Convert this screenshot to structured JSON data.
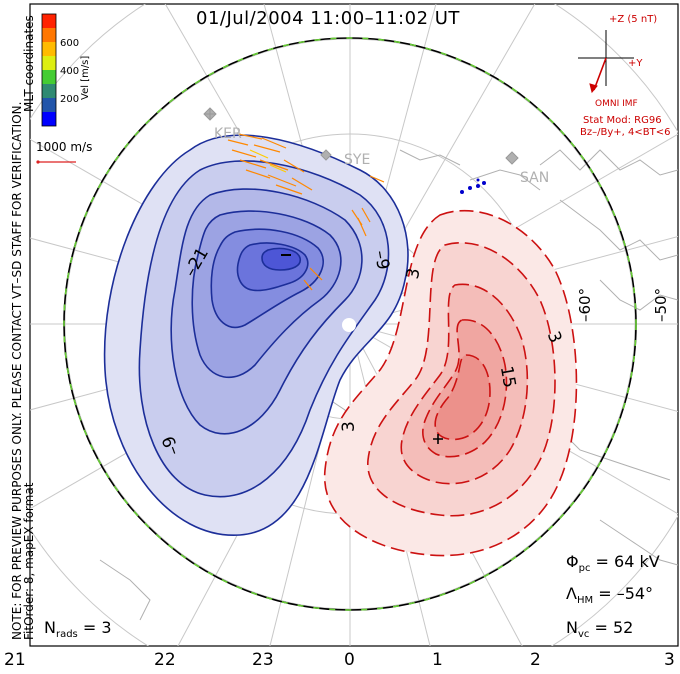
{
  "title": "01/Jul/2004 11:00–11:02 UT",
  "side_notes": {
    "line1": "NOTE: FOR PREVIEW PURPOSES ONLY. PLEASE CONTACT VT–SD STAFF FOR VERIFICATION.",
    "line2": "FitOrder: 8, mapEX format",
    "mlt": "MLT coordinates"
  },
  "colorbar": {
    "label": "Vel [m/s]",
    "ticks": [
      "600",
      "400",
      "200"
    ],
    "colors": [
      "#ff0000",
      "#ff8000",
      "#ffcc00",
      "#ccee00",
      "#33cc33",
      "#2f8f6f",
      "#1f55aa",
      "#0000ff"
    ]
  },
  "velocity_scale": "1000 m/s",
  "imf": {
    "bz_label": "+Z (5 nT)",
    "by_label": "+Y",
    "caption": "OMNI IMF",
    "model_line1": "Stat Mod: RG96",
    "model_line2": "Bz–/By+, 4<BT<6"
  },
  "radars": [
    "KER",
    "SYE",
    "SAN"
  ],
  "latitude_labels": [
    "–60°",
    "–50°"
  ],
  "mlt_labels": [
    "21",
    "22",
    "23",
    "0",
    "1",
    "2",
    "3"
  ],
  "contour_labels": {
    "neg": [
      "–21",
      "–9",
      "–9"
    ],
    "pos": [
      "3",
      "3",
      "3",
      "15"
    ]
  },
  "stats": {
    "phi_pc": "Φpc = 64 kV",
    "phi_sym": "Φ",
    "phi_sub": "pc",
    "phi_val": "= 64 kV",
    "lambda_sym": "Λ",
    "lambda_sub": "HM",
    "lambda_val": "= –54°",
    "nvc_sym": "N",
    "nvc_sub": "vc",
    "nvc_val": "= 52",
    "nrads_sym": "N",
    "nrads_sub": "rads",
    "nrads_val": "= 3"
  },
  "colors": {
    "negative": "#0000cc",
    "positive": "#dd0000",
    "boundary": "#66cc33",
    "grid": "#bbbbbb",
    "land": "#aaaaaa"
  }
}
